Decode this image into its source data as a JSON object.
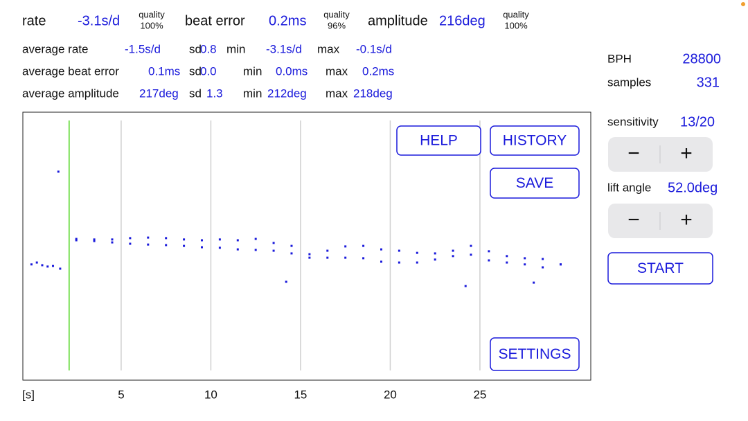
{
  "readings": [
    {
      "label": "rate",
      "value": "-3.1s/d",
      "quality_label": "quality",
      "quality": "100%"
    },
    {
      "label": "beat error",
      "value": "0.2ms",
      "quality_label": "quality",
      "quality": "96%"
    },
    {
      "label": "amplitude",
      "value": "216deg",
      "quality_label": "quality",
      "quality": "100%"
    }
  ],
  "stats": [
    {
      "label": "average rate",
      "value": "-1.5s/d",
      "sd_label": "sd",
      "sd": "0.8",
      "min_label": "min",
      "min": "-3.1s/d",
      "max_label": "max",
      "max": "-0.1s/d"
    },
    {
      "label": "average beat error",
      "value": "0.1ms",
      "sd_label": "sd",
      "sd": "0.0",
      "min_label": "min",
      "min": "0.0ms",
      "max_label": "max",
      "max": "0.2ms"
    },
    {
      "label": "average amplitude",
      "value": "217deg",
      "sd_label": "sd",
      "sd": "1.3",
      "min_label": "min",
      "min": "212deg",
      "max_label": "max",
      "max": "218deg"
    }
  ],
  "settings": {
    "bph_label": "BPH",
    "bph": "28800",
    "samples_label": "samples",
    "samples": "331",
    "sensitivity_label": "sensitivity",
    "sensitivity": "13/20",
    "lift_angle_label": "lift angle",
    "lift_angle": "52.0deg",
    "minus": "−",
    "plus": "+"
  },
  "buttons": {
    "help": "HELP",
    "history": "HISTORY",
    "save": "SAVE",
    "settings": "SETTINGS",
    "start": "START"
  },
  "chart_data": {
    "type": "scatter",
    "xlabel": "[s]",
    "xlim": [
      -0.48,
      31.18
    ],
    "xticks": [
      5,
      10,
      15,
      20,
      25
    ],
    "ylim": [
      0,
      100
    ],
    "grid": true,
    "marker_x": 2.1,
    "marker_color": "#7ee05a",
    "series": [
      {
        "color": "#1a1adb",
        "x": [
          2.5,
          3.5,
          4.5,
          5.5,
          6.5,
          7.5,
          8.5,
          9.5,
          10.5,
          11.5,
          12.5,
          13.5,
          14.5,
          15.5,
          16.5,
          17.5,
          18.5,
          19.5,
          20.5,
          21.5,
          22.5,
          23.5,
          24.5,
          25.5,
          26.5,
          27.5,
          28.5,
          29.5
        ],
        "values": [
          52.7,
          52.5,
          52.5,
          53.0,
          53.2,
          53.0,
          52.5,
          52.2,
          52.5,
          52.2,
          52.7,
          51.2,
          50.1,
          47.0,
          48.3,
          49.9,
          50.1,
          48.8,
          48.3,
          47.5,
          47.3,
          48.3,
          50.1,
          48.1,
          46.3,
          45.5,
          45.2,
          43.2
        ]
      },
      {
        "color": "#1a1adb",
        "x": [
          2.5,
          3.5,
          4.5,
          5.5,
          6.5,
          7.5,
          8.5,
          9.5,
          10.5,
          11.5,
          12.5,
          13.5,
          14.5,
          15.5,
          16.5,
          17.5,
          18.5,
          19.5,
          20.5,
          21.5,
          22.5,
          23.5,
          24.5,
          25.5,
          26.5,
          27.5,
          28.5,
          29.5
        ],
        "values": [
          52.2,
          51.9,
          51.4,
          50.9,
          50.6,
          50.4,
          50.1,
          49.6,
          49.4,
          48.8,
          48.6,
          48.3,
          47.3,
          45.7,
          45.7,
          45.7,
          45.5,
          44.2,
          43.9,
          43.9,
          45.0,
          46.3,
          46.8,
          44.7,
          43.9,
          43.2,
          42.1,
          43.2
        ]
      },
      {
        "color": "#1a1adb",
        "x": [
          0,
          0.3,
          0.6,
          0.9,
          1.2,
          1.6,
          1.5,
          14.2,
          24.2,
          28
        ],
        "values": [
          43.2,
          43.9,
          42.9,
          42.4,
          42.6,
          41.6,
          77.8,
          36.7,
          35.1,
          36.4
        ]
      }
    ]
  }
}
